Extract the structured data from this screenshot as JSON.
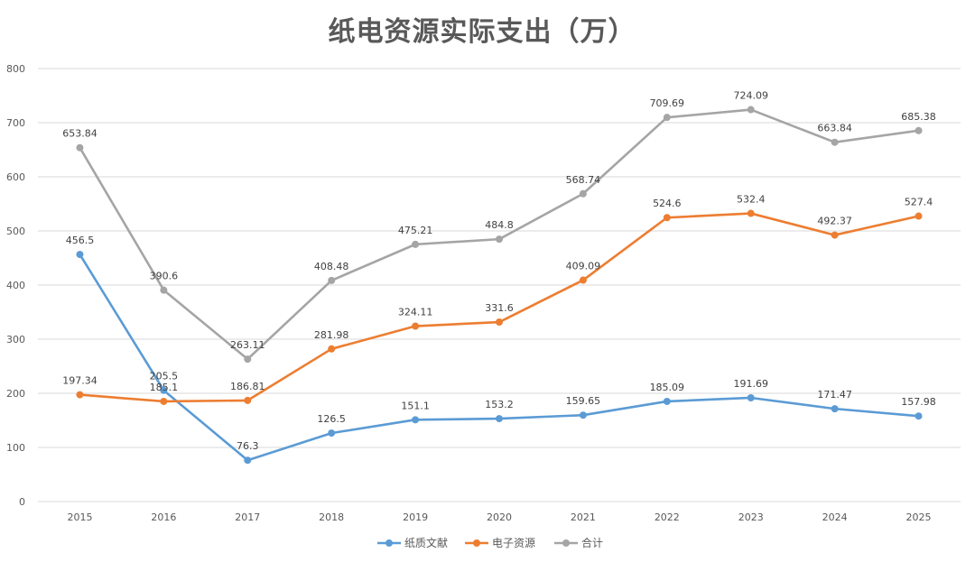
{
  "chart_data": {
    "type": "line",
    "title": "纸电资源实际支出（万）",
    "xlabel": "",
    "ylabel": "",
    "ylim": [
      0,
      800
    ],
    "yticks": [
      0,
      100,
      200,
      300,
      400,
      500,
      600,
      700,
      800
    ],
    "grid": true,
    "legend_position": "bottom",
    "categories": [
      "2015",
      "2016",
      "2017",
      "2018",
      "2019",
      "2020",
      "2021",
      "2022",
      "2023",
      "2024",
      "2025"
    ],
    "series": [
      {
        "name": "纸质文献",
        "color": "#5b9bd5",
        "values": [
          456.5,
          205.5,
          76.3,
          126.5,
          151.1,
          153.2,
          159.65,
          185.09,
          191.69,
          171.47,
          157.98
        ]
      },
      {
        "name": "电子资源",
        "color": "#ed7d31",
        "values": [
          197.34,
          185.1,
          186.81,
          281.98,
          324.11,
          331.6,
          409.09,
          524.6,
          532.4,
          492.37,
          527.4
        ]
      },
      {
        "name": "合计",
        "color": "#a5a5a5",
        "values": [
          653.84,
          390.6,
          263.11,
          408.48,
          475.21,
          484.8,
          568.74,
          709.69,
          724.09,
          663.84,
          685.38
        ]
      }
    ]
  }
}
